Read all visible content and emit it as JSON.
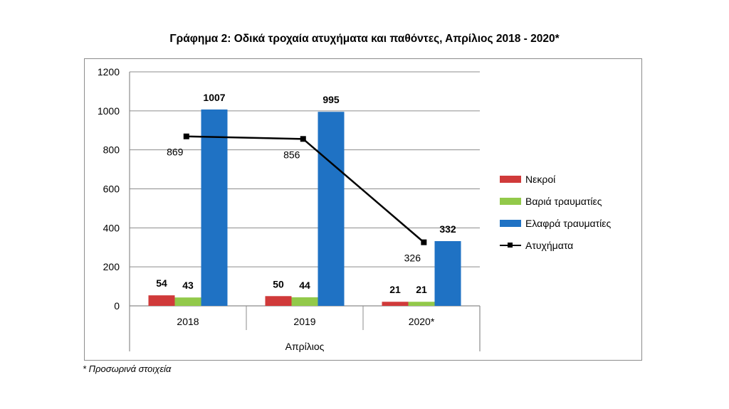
{
  "title": "Γράφημα 2: Οδικά τροχαία ατυχήματα και παθόντες, Απρίλιος 2018 - 2020*",
  "footnote": "* Προσωρινά στοιχεία",
  "chart_data": {
    "type": "bar",
    "title": "Γράφημα 2: Οδικά τροχαία ατυχήματα και παθόντες, Απρίλιος 2018 - 2020*",
    "categories": [
      "2018",
      "2019",
      "2020*"
    ],
    "xlabel": "Απρίλιος",
    "ylabel": "",
    "ylim": [
      0,
      1200
    ],
    "yticks": [
      0,
      200,
      400,
      600,
      800,
      1000,
      1200
    ],
    "grid": true,
    "legend_position": "right",
    "series": [
      {
        "name": "Νεκροί",
        "type": "bar",
        "color": "#d03a3a",
        "values": [
          54,
          50,
          21
        ]
      },
      {
        "name": "Βαριά τραυματίες",
        "type": "bar",
        "color": "#92c94a",
        "values": [
          43,
          44,
          21
        ]
      },
      {
        "name": "Ελαφρά τραυματίες",
        "type": "bar",
        "color": "#1f72c4",
        "values": [
          1007,
          995,
          332
        ]
      },
      {
        "name": "Ατυχήματα",
        "type": "line",
        "color": "#000000",
        "values": [
          869,
          856,
          326
        ]
      }
    ]
  }
}
